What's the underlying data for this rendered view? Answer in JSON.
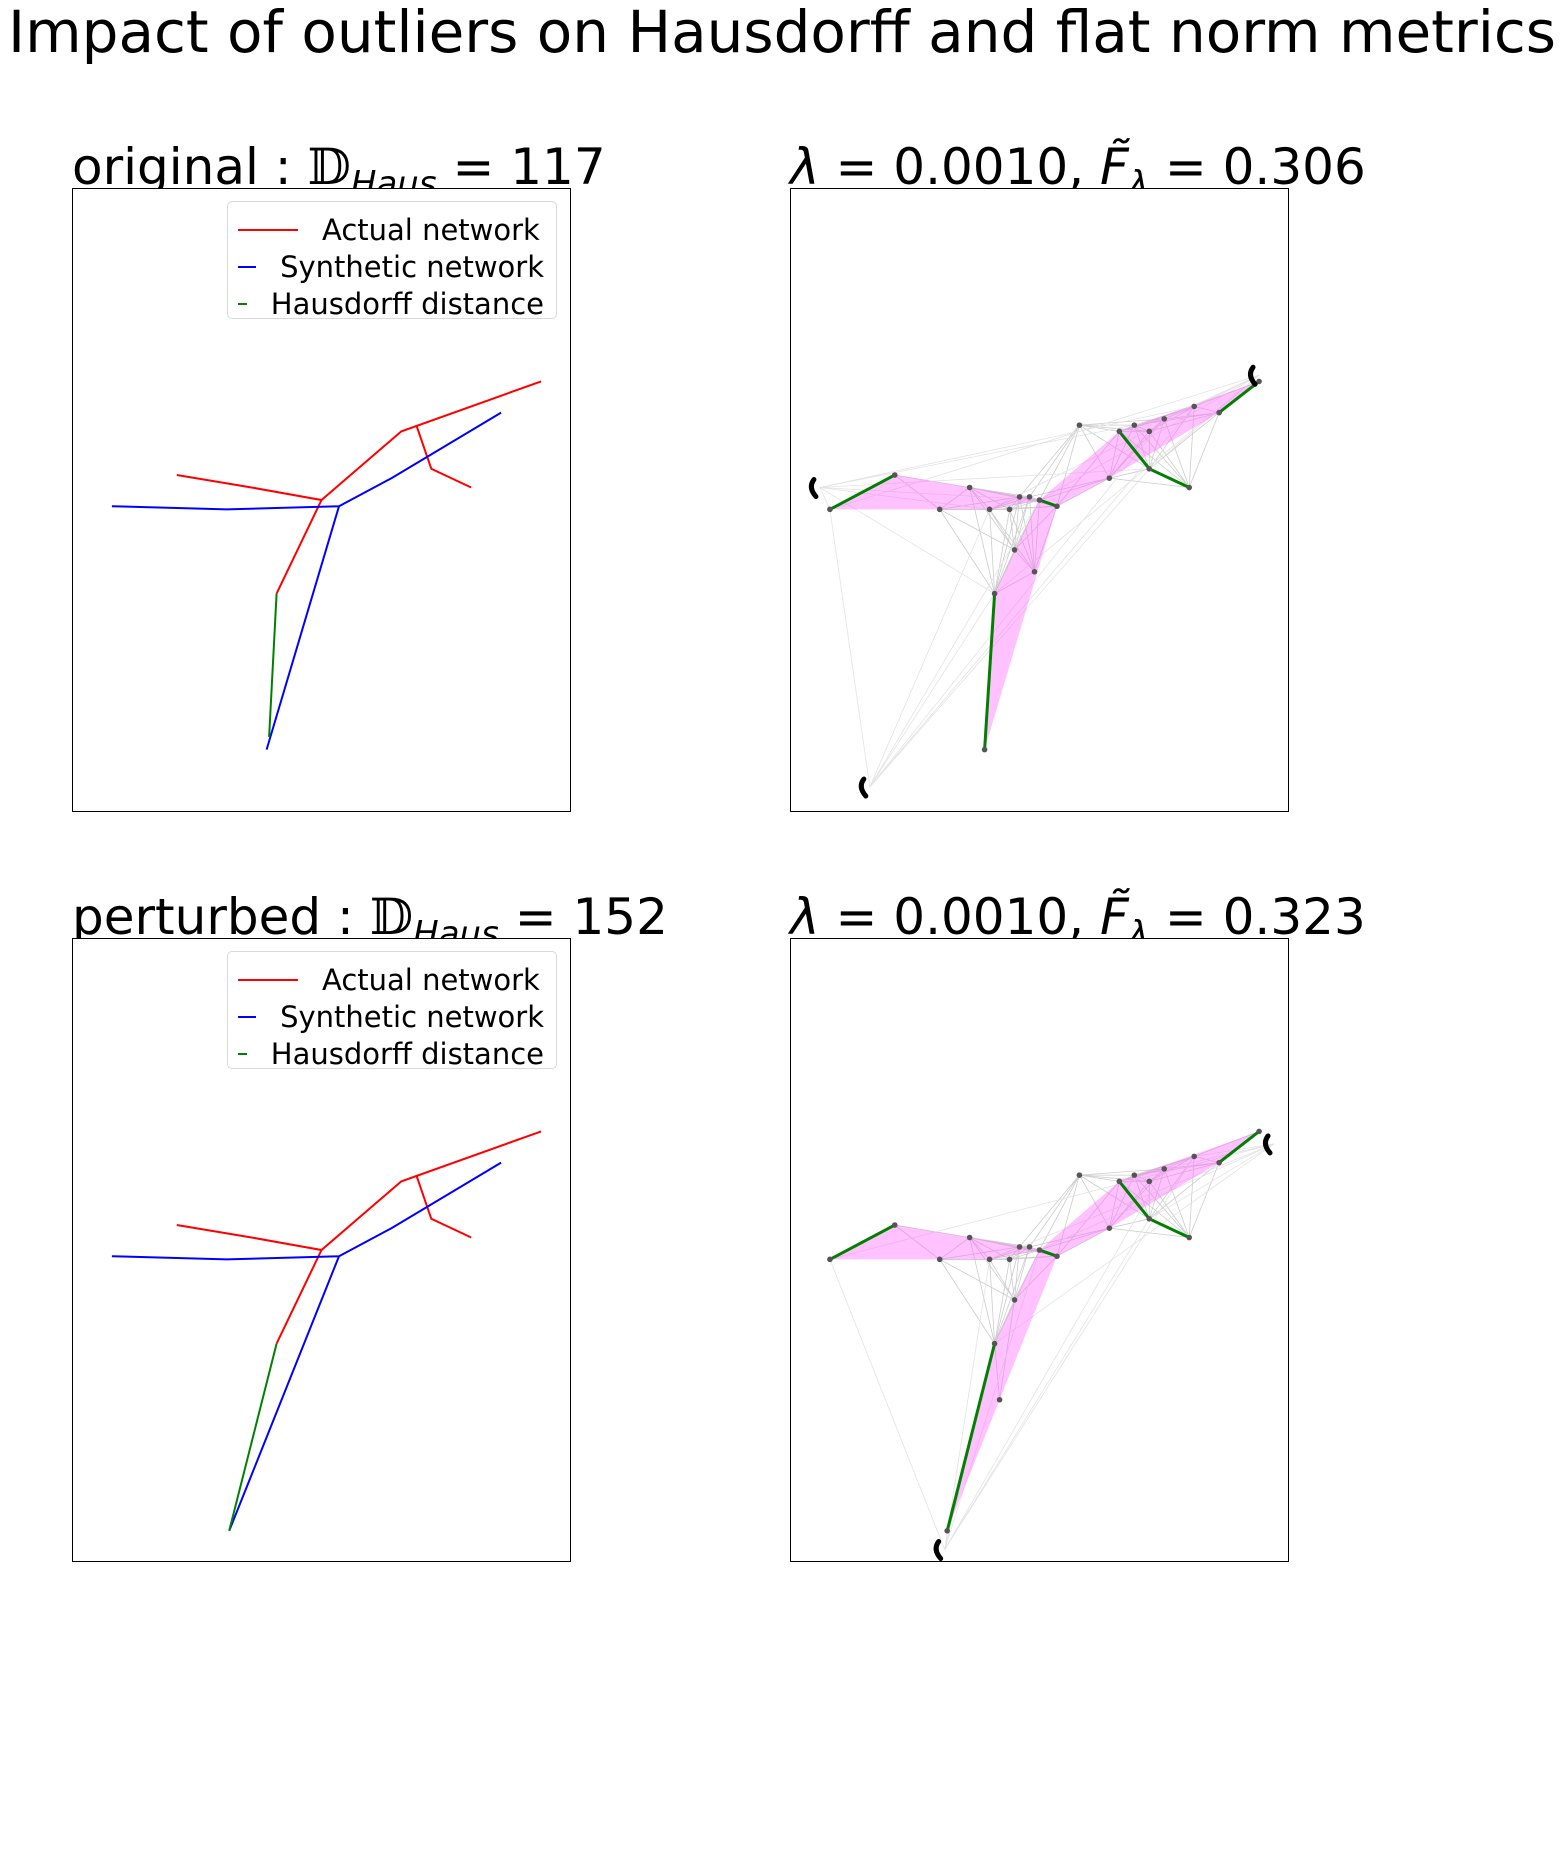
{
  "figure_title": "Impact of outliers on Hausdorff and flat norm metrics",
  "colors": {
    "actual": "#ff0000",
    "synthetic": "#0000ff",
    "hausdorff": "#008000",
    "flat_norm_region": "#ff66ff",
    "triangulation": "#cccccc",
    "nodes": "#555555",
    "outlier": "#000000"
  },
  "chart_data": [
    {
      "type": "line",
      "panel": "original",
      "title_prefix": "original : ",
      "metric_symbol": "𝔻",
      "metric_subscript": "Haus",
      "metric_value": "117",
      "legend_position": "upper-right",
      "legend": [
        "Actual network",
        "Synthetic network",
        "Hausdorff distance"
      ],
      "series": [
        {
          "name": "Actual network",
          "color": "#ff0000",
          "segments": [
            [
              [
                0.21,
                0.54
              ],
              [
                0.36,
                0.52
              ],
              [
                0.5,
                0.5
              ],
              [
                0.66,
                0.61
              ],
              [
                0.94,
                0.69
              ]
            ],
            [
              [
                0.5,
                0.5
              ],
              [
                0.41,
                0.35
              ]
            ],
            [
              [
                0.69,
                0.62
              ],
              [
                0.72,
                0.55
              ],
              [
                0.8,
                0.52
              ]
            ]
          ]
        },
        {
          "name": "Synthetic network",
          "color": "#0000ff",
          "segments": [
            [
              [
                0.08,
                0.49
              ],
              [
                0.31,
                0.485
              ],
              [
                0.535,
                0.49
              ],
              [
                0.64,
                0.535
              ],
              [
                0.86,
                0.64
              ]
            ],
            [
              [
                0.535,
                0.49
              ],
              [
                0.39,
                0.1
              ]
            ]
          ]
        },
        {
          "name": "Hausdorff distance",
          "color": "#008000",
          "segments": [
            [
              [
                0.41,
                0.35
              ],
              [
                0.395,
                0.12
              ]
            ]
          ]
        }
      ]
    },
    {
      "type": "line",
      "panel": "flat-norm-original",
      "title_lambda": "0.0010",
      "title_flat_norm": "0.306",
      "flat_norm_regions": [
        [
          [
            0.08,
            0.485
          ],
          [
            0.21,
            0.54
          ],
          [
            0.36,
            0.52
          ],
          [
            0.5,
            0.5
          ],
          [
            0.4,
            0.485
          ],
          [
            0.27,
            0.485
          ]
        ],
        [
          [
            0.5,
            0.5
          ],
          [
            0.66,
            0.61
          ],
          [
            0.94,
            0.69
          ],
          [
            0.86,
            0.64
          ],
          [
            0.64,
            0.535
          ],
          [
            0.535,
            0.49
          ]
        ],
        [
          [
            0.5,
            0.5
          ],
          [
            0.535,
            0.49
          ],
          [
            0.39,
            0.1
          ],
          [
            0.41,
            0.35
          ]
        ]
      ],
      "hausdorff_segments": [
        [
          [
            0.08,
            0.485
          ],
          [
            0.21,
            0.54
          ]
        ],
        [
          [
            0.41,
            0.35
          ],
          [
            0.39,
            0.1
          ]
        ],
        [
          [
            0.66,
            0.61
          ],
          [
            0.72,
            0.55
          ],
          [
            0.8,
            0.52
          ]
        ],
        [
          [
            0.94,
            0.69
          ],
          [
            0.86,
            0.64
          ]
        ],
        [
          [
            0.5,
            0.5
          ],
          [
            0.535,
            0.49
          ]
        ]
      ],
      "nodes": [
        [
          0.08,
          0.485
        ],
        [
          0.21,
          0.54
        ],
        [
          0.3,
          0.485
        ],
        [
          0.36,
          0.52
        ],
        [
          0.4,
          0.485
        ],
        [
          0.44,
          0.485
        ],
        [
          0.46,
          0.505
        ],
        [
          0.48,
          0.505
        ],
        [
          0.5,
          0.5
        ],
        [
          0.535,
          0.49
        ],
        [
          0.45,
          0.42
        ],
        [
          0.49,
          0.385
        ],
        [
          0.41,
          0.35
        ],
        [
          0.39,
          0.1
        ],
        [
          0.64,
          0.535
        ],
        [
          0.66,
          0.61
        ],
        [
          0.72,
          0.55
        ],
        [
          0.8,
          0.52
        ],
        [
          0.86,
          0.64
        ],
        [
          0.94,
          0.69
        ],
        [
          0.75,
          0.63
        ],
        [
          0.69,
          0.62
        ],
        [
          0.58,
          0.62
        ],
        [
          0.72,
          0.61
        ],
        [
          0.81,
          0.65
        ]
      ],
      "outlier_arcs": [
        [
          0.06,
          0.52
        ],
        [
          0.94,
          0.7
        ],
        [
          0.16,
          0.04
        ]
      ]
    },
    {
      "type": "line",
      "panel": "perturbed",
      "title_prefix": "perturbed : ",
      "metric_symbol": "𝔻",
      "metric_subscript": "Haus",
      "metric_value": "152",
      "legend_position": "upper-right",
      "legend": [
        "Actual network",
        "Synthetic network",
        "Hausdorff distance"
      ],
      "series": [
        {
          "name": "Actual network",
          "color": "#ff0000",
          "segments": [
            [
              [
                0.21,
                0.54
              ],
              [
                0.36,
                0.52
              ],
              [
                0.5,
                0.5
              ],
              [
                0.66,
                0.61
              ],
              [
                0.94,
                0.69
              ]
            ],
            [
              [
                0.5,
                0.5
              ],
              [
                0.41,
                0.35
              ]
            ],
            [
              [
                0.69,
                0.62
              ],
              [
                0.72,
                0.55
              ],
              [
                0.8,
                0.52
              ]
            ]
          ]
        },
        {
          "name": "Synthetic network",
          "color": "#0000ff",
          "segments": [
            [
              [
                0.08,
                0.49
              ],
              [
                0.31,
                0.485
              ],
              [
                0.535,
                0.49
              ],
              [
                0.64,
                0.535
              ],
              [
                0.86,
                0.64
              ]
            ],
            [
              [
                0.535,
                0.49
              ],
              [
                0.315,
                0.05
              ]
            ]
          ]
        },
        {
          "name": "Hausdorff distance",
          "color": "#008000",
          "segments": [
            [
              [
                0.41,
                0.35
              ],
              [
                0.315,
                0.05
              ]
            ]
          ]
        }
      ]
    },
    {
      "type": "line",
      "panel": "flat-norm-perturbed",
      "title_lambda": "0.0010",
      "title_flat_norm": "0.323",
      "flat_norm_regions": [
        [
          [
            0.08,
            0.485
          ],
          [
            0.21,
            0.54
          ],
          [
            0.36,
            0.52
          ],
          [
            0.5,
            0.5
          ],
          [
            0.4,
            0.485
          ],
          [
            0.27,
            0.485
          ]
        ],
        [
          [
            0.5,
            0.5
          ],
          [
            0.66,
            0.61
          ],
          [
            0.94,
            0.69
          ],
          [
            0.86,
            0.64
          ],
          [
            0.64,
            0.535
          ],
          [
            0.535,
            0.49
          ]
        ],
        [
          [
            0.5,
            0.5
          ],
          [
            0.535,
            0.49
          ],
          [
            0.315,
            0.05
          ],
          [
            0.41,
            0.35
          ]
        ]
      ],
      "hausdorff_segments": [
        [
          [
            0.08,
            0.485
          ],
          [
            0.21,
            0.54
          ]
        ],
        [
          [
            0.41,
            0.35
          ],
          [
            0.315,
            0.05
          ]
        ],
        [
          [
            0.66,
            0.61
          ],
          [
            0.72,
            0.55
          ],
          [
            0.8,
            0.52
          ]
        ],
        [
          [
            0.94,
            0.69
          ],
          [
            0.86,
            0.64
          ]
        ],
        [
          [
            0.5,
            0.5
          ],
          [
            0.535,
            0.49
          ]
        ]
      ],
      "nodes": [
        [
          0.08,
          0.485
        ],
        [
          0.21,
          0.54
        ],
        [
          0.3,
          0.485
        ],
        [
          0.36,
          0.52
        ],
        [
          0.4,
          0.485
        ],
        [
          0.44,
          0.485
        ],
        [
          0.46,
          0.505
        ],
        [
          0.48,
          0.505
        ],
        [
          0.5,
          0.5
        ],
        [
          0.535,
          0.49
        ],
        [
          0.45,
          0.42
        ],
        [
          0.42,
          0.26
        ],
        [
          0.41,
          0.35
        ],
        [
          0.315,
          0.05
        ],
        [
          0.64,
          0.535
        ],
        [
          0.66,
          0.61
        ],
        [
          0.72,
          0.55
        ],
        [
          0.8,
          0.52
        ],
        [
          0.86,
          0.64
        ],
        [
          0.94,
          0.69
        ],
        [
          0.75,
          0.63
        ],
        [
          0.69,
          0.62
        ],
        [
          0.58,
          0.62
        ],
        [
          0.72,
          0.61
        ],
        [
          0.81,
          0.65
        ]
      ],
      "outlier_arcs": [
        [
          0.97,
          0.67
        ],
        [
          0.31,
          0.02
        ]
      ]
    }
  ]
}
